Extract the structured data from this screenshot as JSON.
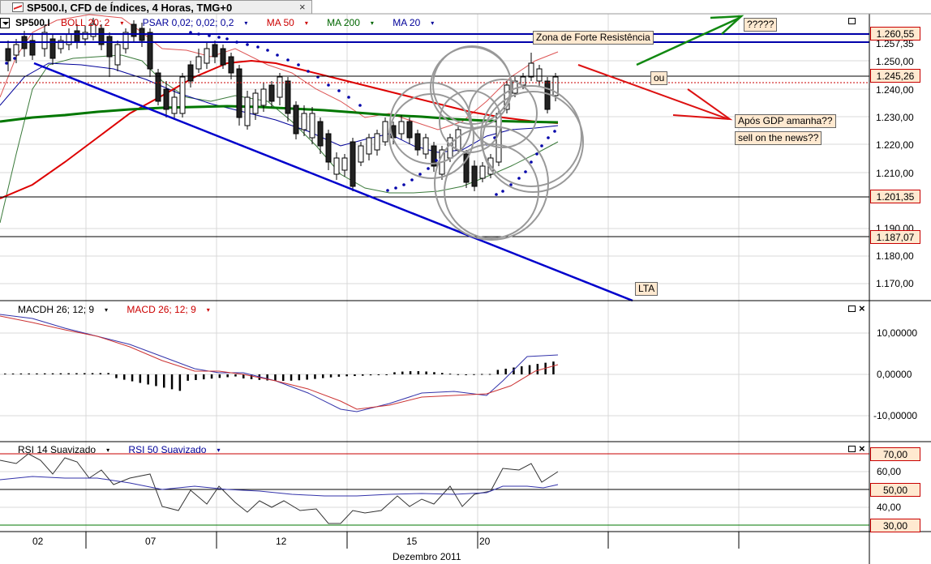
{
  "window": {
    "title": "SP500.I, CFD de Índices, 4 Horas, TMG+0",
    "close_symbol": "×"
  },
  "price_pane": {
    "legend": [
      {
        "label": "SP500.I",
        "color": "#000000"
      },
      {
        "label": "BOLL 20; 2",
        "color": "#cc0000"
      },
      {
        "label": "PSAR 0,02; 0,02; 0,2",
        "color": "#000099"
      },
      {
        "label": "MA 50",
        "color": "#cc0000"
      },
      {
        "label": "MA 200",
        "color": "#006600"
      },
      {
        "label": "MA 20",
        "color": "#000099"
      }
    ],
    "dropdown_arrow": "▾",
    "axis_ticks": [
      "1.250,00",
      "1.240,00",
      "1.230,00",
      "1.220,00",
      "1.210,00",
      "1.190,00",
      "1.180,00",
      "1.170,00"
    ],
    "partial_tick": "1.257,35",
    "price_boxes": [
      "1.260,55",
      "1.245,26",
      "1.201,35",
      "1.187,07"
    ],
    "annotations": {
      "resistance_zone": "Zona de Forte Resistência",
      "question": "?????",
      "or_label": "ou",
      "gdp_question": "Após GDP amanha??",
      "sell_news": "sell on the news??",
      "trendline_label": "LTA"
    }
  },
  "macd_pane": {
    "legend": [
      {
        "label": "MACDH 26; 12; 9",
        "color": "#000000"
      },
      {
        "label": "MACD 26; 12; 9",
        "color": "#cc0000"
      }
    ],
    "axis_ticks": [
      "10,00000",
      "0,00000",
      "-10,00000"
    ]
  },
  "rsi_pane": {
    "legend": [
      {
        "label": "RSI 14 Suavizado",
        "color": "#000000"
      },
      {
        "label": "RSI 50 Suavizado",
        "color": "#000099"
      }
    ],
    "axis_ticks": [
      "60,00",
      "40,00"
    ],
    "level_boxes": [
      "70,00",
      "50,00",
      "30,00"
    ]
  },
  "time_axis": {
    "ticks": [
      "02",
      "07",
      "12",
      "15",
      "20"
    ],
    "month_label": "Dezembro 2011"
  },
  "colors": {
    "bollinger": "#cc0000",
    "ma20": "#000099",
    "ma50": "#dd0000",
    "ma200": "#007700",
    "trendline": "#0000cc",
    "arrow_up": "#118811",
    "arrow_down": "#dd1111",
    "circle": "#999999",
    "price_box_bg": "#ffe9d0"
  }
}
